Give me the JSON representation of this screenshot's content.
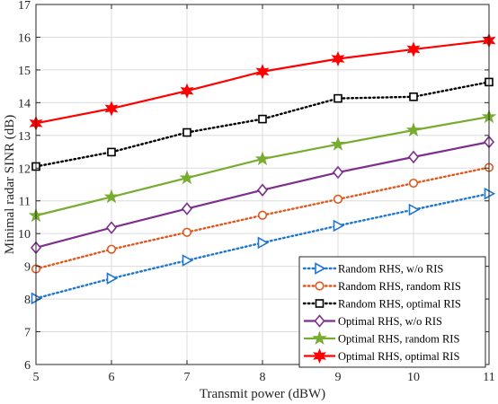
{
  "chart_data": {
    "type": "line",
    "xlabel": "Transmit power (dBW)",
    "ylabel": "Minimal radar SINR (dB)",
    "xlim": [
      5,
      11
    ],
    "ylim": [
      6,
      17
    ],
    "x_ticks": [
      5,
      6,
      7,
      8,
      9,
      10,
      11
    ],
    "y_ticks": [
      6,
      7,
      8,
      9,
      10,
      11,
      12,
      13,
      14,
      15,
      16,
      17
    ],
    "grid": true,
    "box": true,
    "legend_position": "bottom-right",
    "x": [
      5,
      6,
      7,
      8,
      9,
      10,
      11
    ],
    "series": [
      {
        "name": "Random RHS, w/o RIS",
        "values": [
          8.02,
          8.63,
          9.18,
          9.72,
          10.24,
          10.73,
          11.22
        ],
        "color": "#1f77d0",
        "line": "dotted",
        "marker": "triangle-right"
      },
      {
        "name": "Random RHS, random RIS",
        "values": [
          8.92,
          9.52,
          10.04,
          10.56,
          11.05,
          11.54,
          12.02
        ],
        "color": "#e2571e",
        "line": "dotted",
        "marker": "circle"
      },
      {
        "name": "Random RHS, optimal RIS",
        "values": [
          12.05,
          12.49,
          13.09,
          13.5,
          14.13,
          14.18,
          14.63
        ],
        "color": "#000000",
        "line": "dotted",
        "marker": "square"
      },
      {
        "name": "Optimal RHS, w/o RIS",
        "values": [
          9.57,
          10.18,
          10.76,
          11.33,
          11.87,
          12.34,
          12.8
        ],
        "color": "#7e2f8e",
        "line": "solid",
        "marker": "diamond"
      },
      {
        "name": "Optimal RHS, random RIS",
        "values": [
          10.55,
          11.12,
          11.7,
          12.28,
          12.73,
          13.16,
          13.57
        ],
        "color": "#77ac30",
        "line": "solid",
        "marker": "star"
      },
      {
        "name": "Optimal RHS, optimal RIS",
        "values": [
          13.37,
          13.82,
          14.36,
          14.95,
          15.34,
          15.63,
          15.9
        ],
        "color": "#ff0000",
        "line": "solid",
        "marker": "hexagram"
      }
    ]
  }
}
